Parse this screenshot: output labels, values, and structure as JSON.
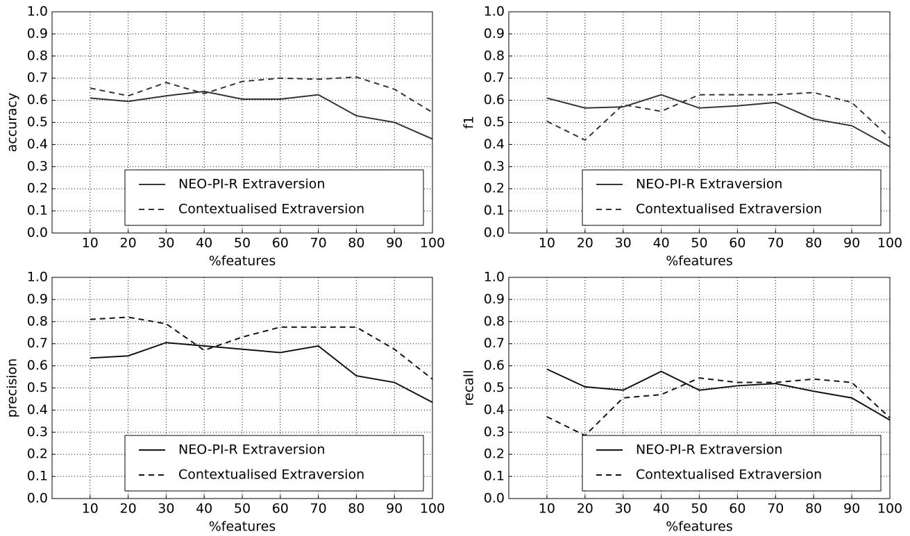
{
  "chart_data": [
    {
      "type": "line",
      "xlabel": "%features",
      "ylabel": "accuracy",
      "x": [
        10,
        20,
        30,
        40,
        50,
        60,
        70,
        80,
        90,
        100
      ],
      "xlim": [
        0,
        100
      ],
      "xticks": [
        10,
        20,
        30,
        40,
        50,
        60,
        70,
        80,
        90,
        100
      ],
      "ylim": [
        0,
        1
      ],
      "yticks": [
        {
          "value": 0,
          "label": "0.0"
        },
        0.1,
        0.2,
        0.3,
        0.4,
        0.5,
        0.6,
        0.7,
        0.8,
        0.9,
        {
          "value": 1,
          "label": "1.0"
        }
      ],
      "grid": true,
      "legend": "lower right",
      "series": [
        {
          "name": "NEO-PI-R Extraversion",
          "color": "#333333",
          "linestyle": "solid",
          "values": [
            0.61,
            0.595,
            0.62,
            0.64,
            0.605,
            0.605,
            0.625,
            0.53,
            0.5,
            0.425
          ]
        },
        {
          "name": "Contextualised Extraversion",
          "color": "#333333",
          "linestyle": "dashed",
          "values": [
            0.655,
            0.62,
            0.68,
            0.63,
            0.685,
            0.7,
            0.695,
            0.705,
            0.65,
            0.545
          ]
        }
      ]
    },
    {
      "type": "line",
      "xlabel": "%features",
      "ylabel": "f1",
      "x": [
        10,
        20,
        30,
        40,
        50,
        60,
        70,
        80,
        90,
        100
      ],
      "xlim": [
        0,
        100
      ],
      "xticks": [
        10,
        20,
        30,
        40,
        50,
        60,
        70,
        80,
        90,
        100
      ],
      "ylim": [
        0,
        1
      ],
      "yticks": [
        {
          "value": 0,
          "label": "0.0"
        },
        0.1,
        0.2,
        0.3,
        0.4,
        0.5,
        0.6,
        0.7,
        0.8,
        0.9,
        {
          "value": 1,
          "label": "1.0"
        }
      ],
      "grid": true,
      "legend": "lower right",
      "series": [
        {
          "name": "NEO-PI-R Extraversion",
          "color": "#333333",
          "linestyle": "solid",
          "values": [
            0.61,
            0.565,
            0.57,
            0.625,
            0.565,
            0.575,
            0.59,
            0.515,
            0.485,
            0.39
          ]
        },
        {
          "name": "Contextualised Extraversion",
          "color": "#333333",
          "linestyle": "dashed",
          "values": [
            0.505,
            0.42,
            0.58,
            0.55,
            0.625,
            0.625,
            0.625,
            0.635,
            0.59,
            0.43
          ]
        }
      ]
    },
    {
      "type": "line",
      "xlabel": "%features",
      "ylabel": "precision",
      "x": [
        10,
        20,
        30,
        40,
        50,
        60,
        70,
        80,
        90,
        100
      ],
      "xlim": [
        0,
        100
      ],
      "xticks": [
        10,
        20,
        30,
        40,
        50,
        60,
        70,
        80,
        90,
        100
      ],
      "ylim": [
        0,
        1
      ],
      "yticks": [
        {
          "value": 0,
          "label": "0.0"
        },
        0.1,
        0.2,
        0.3,
        0.4,
        0.5,
        0.6,
        0.7,
        0.8,
        0.9,
        {
          "value": 1,
          "label": "1.0"
        }
      ],
      "grid": true,
      "legend": "lower right",
      "series": [
        {
          "name": "NEO-PI-R Extraversion",
          "color": "#111111",
          "linestyle": "solid",
          "values": [
            0.635,
            0.645,
            0.705,
            0.69,
            0.675,
            0.66,
            0.69,
            0.555,
            0.525,
            0.435
          ]
        },
        {
          "name": "Contextualised Extraversion",
          "color": "#111111",
          "linestyle": "dashed",
          "values": [
            0.81,
            0.82,
            0.79,
            0.67,
            0.73,
            0.775,
            0.775,
            0.775,
            0.675,
            0.54
          ]
        }
      ]
    },
    {
      "type": "line",
      "xlabel": "%features",
      "ylabel": "recall",
      "x": [
        10,
        20,
        30,
        40,
        50,
        60,
        70,
        80,
        90,
        100
      ],
      "xlim": [
        0,
        100
      ],
      "xticks": [
        10,
        20,
        30,
        40,
        50,
        60,
        70,
        80,
        90,
        100
      ],
      "ylim": [
        0,
        1
      ],
      "yticks": [
        {
          "value": 0,
          "label": "0.0"
        },
        0.1,
        0.2,
        0.3,
        0.4,
        0.5,
        0.6,
        0.7,
        0.8,
        0.9,
        {
          "value": 1,
          "label": "1.0"
        }
      ],
      "grid": true,
      "legend": "lower right",
      "series": [
        {
          "name": "NEO-PI-R Extraversion",
          "color": "#111111",
          "linestyle": "solid",
          "values": [
            0.585,
            0.505,
            0.49,
            0.575,
            0.49,
            0.51,
            0.52,
            0.485,
            0.455,
            0.355
          ]
        },
        {
          "name": "Contextualised Extraversion",
          "color": "#111111",
          "linestyle": "dashed",
          "values": [
            0.37,
            0.285,
            0.455,
            0.47,
            0.545,
            0.525,
            0.525,
            0.54,
            0.525,
            0.365
          ]
        }
      ]
    }
  ]
}
